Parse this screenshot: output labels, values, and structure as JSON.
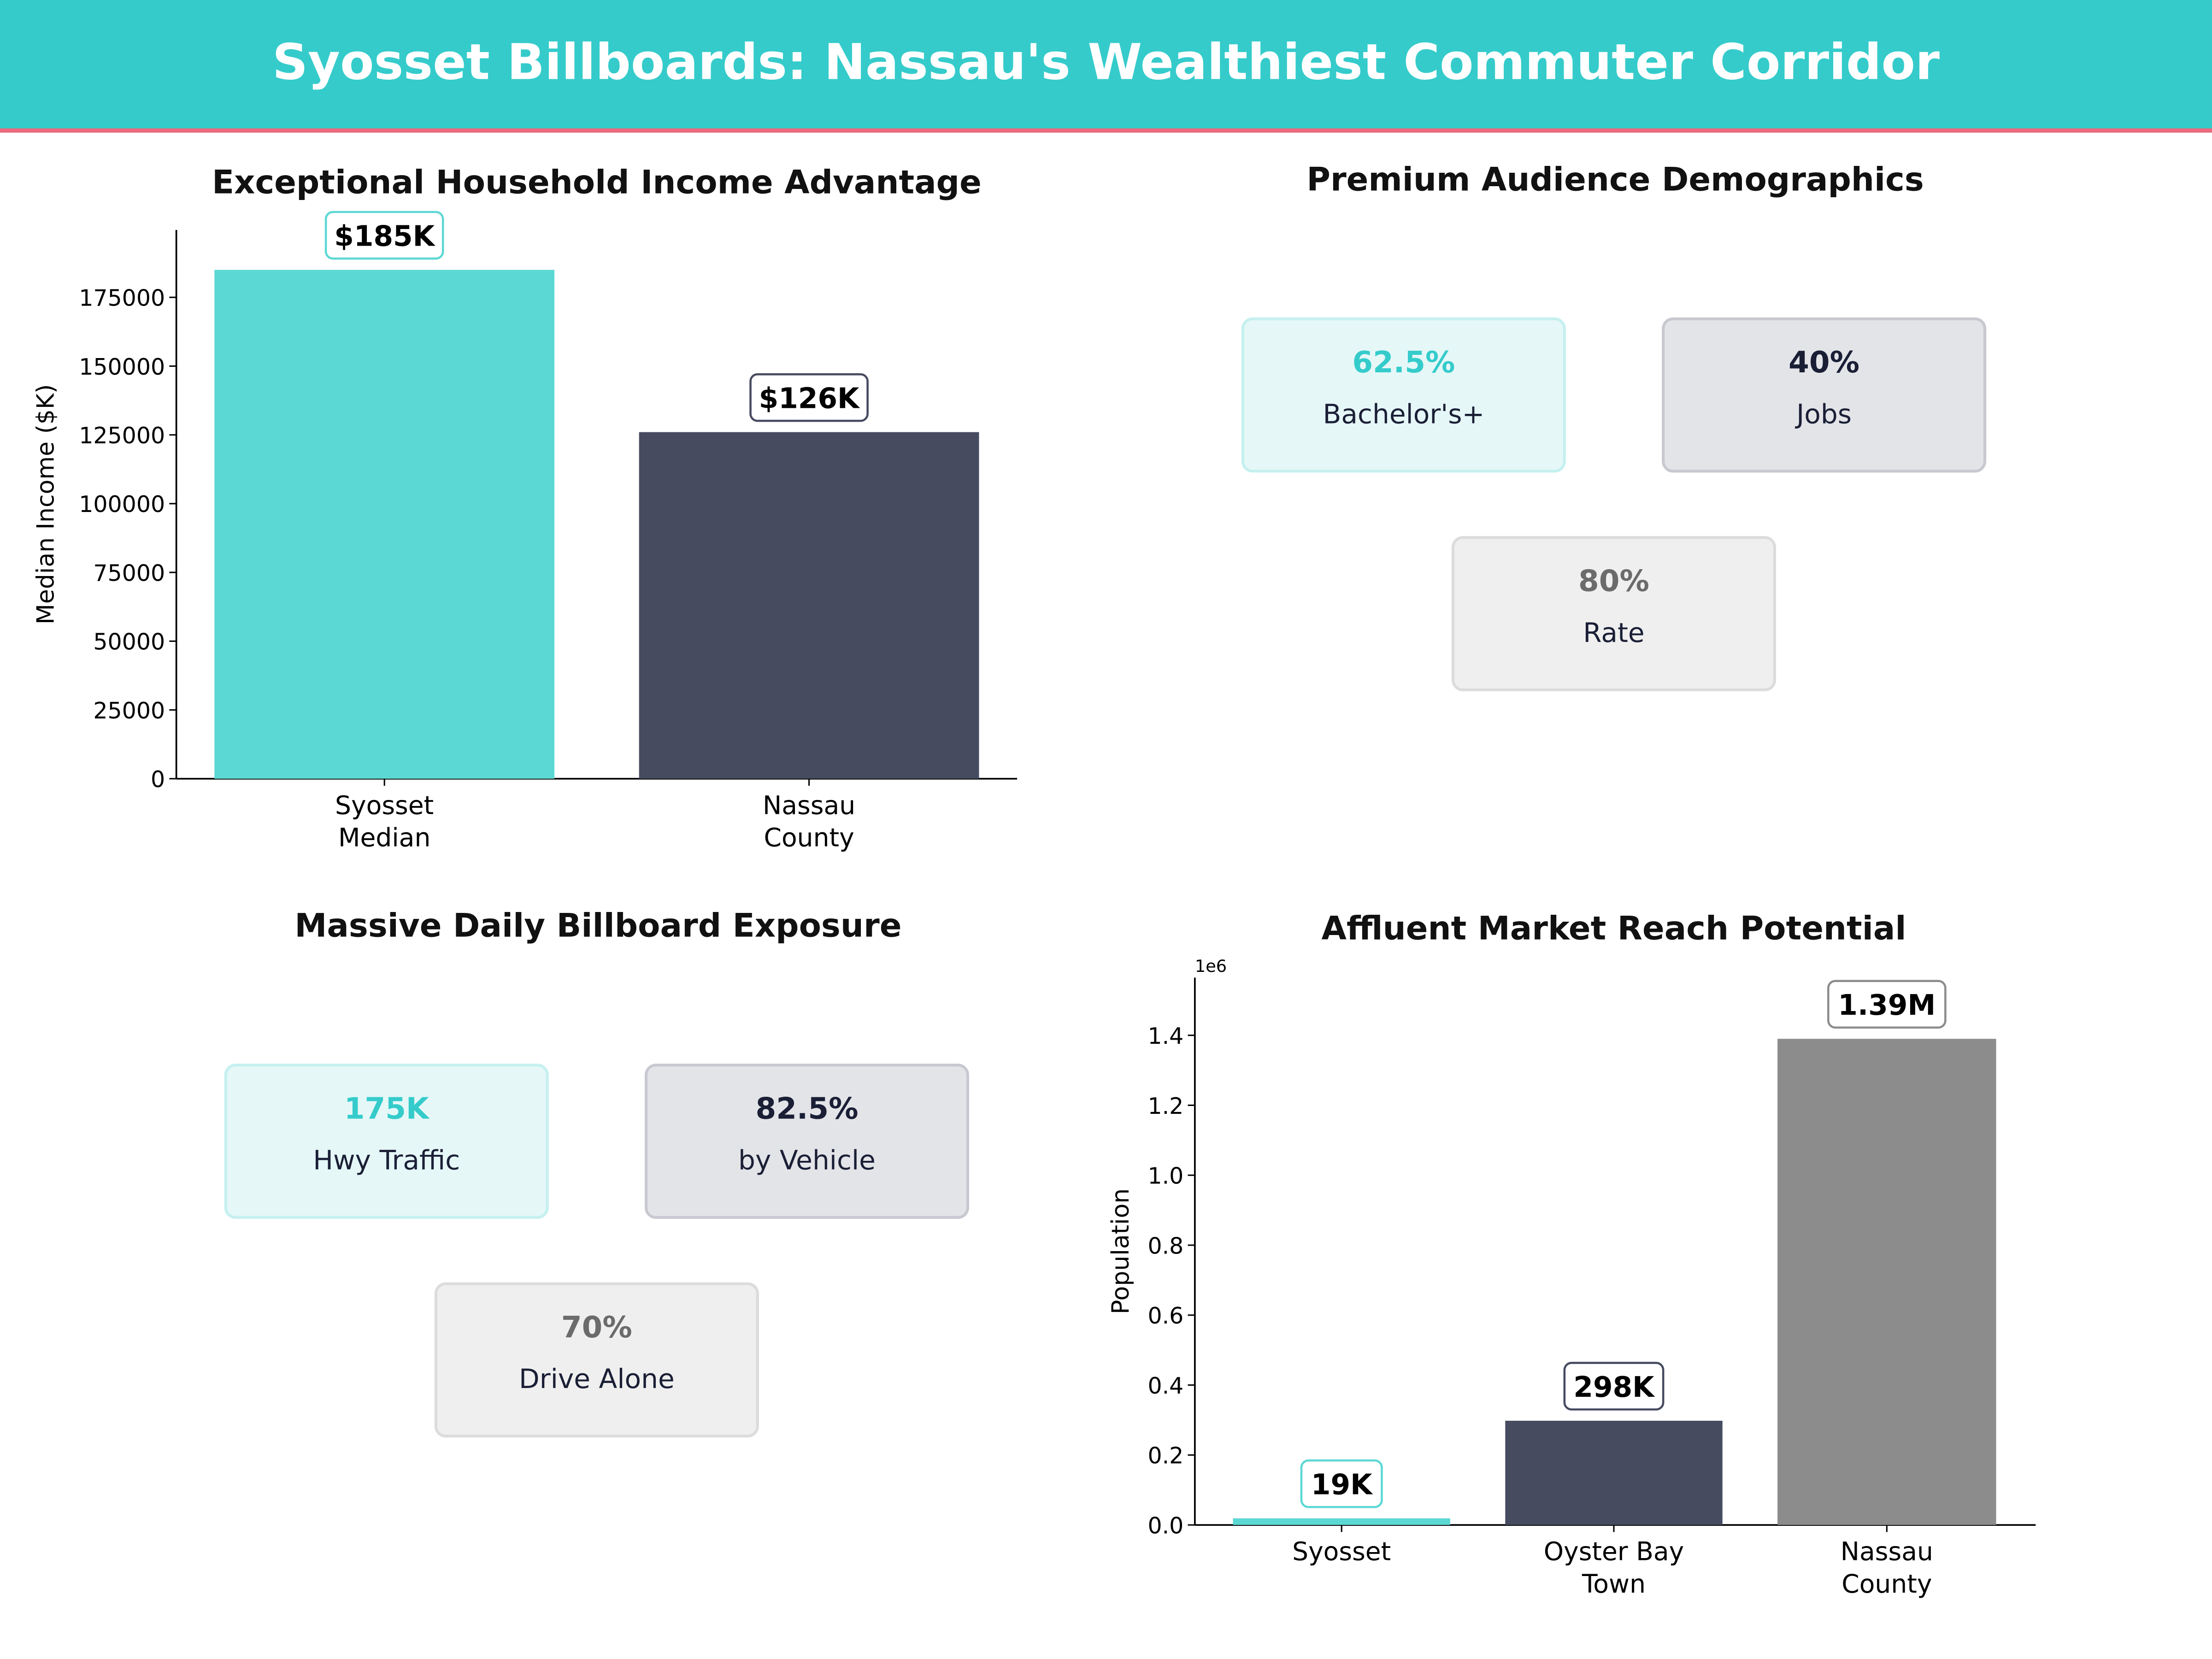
{
  "header": {
    "title": "Syosset Billboards: Nassau's Wealthiest Commuter Corridor"
  },
  "colors": {
    "teal": "#35cbcb",
    "coral": "#ec6a7c",
    "navy": "#464b60",
    "gray": "#8c8c8c"
  },
  "demographics": {
    "title": "Premium Audience Demographics",
    "cards": [
      {
        "value": "62.5%",
        "label": "Bachelor's+",
        "color": "#35cbcb",
        "bg": "#e5f7f7",
        "border": "#c6f0f0"
      },
      {
        "value": "40%",
        "label": "Jobs",
        "color": "#1a1f36",
        "bg": "#e3e4e8",
        "border": "#c8c9d0"
      },
      {
        "value": "80%",
        "label": "Rate",
        "color": "#6b6b6b",
        "bg": "#efefef",
        "border": "#dcdcdc"
      }
    ]
  },
  "exposure": {
    "title": "Massive Daily Billboard Exposure",
    "cards": [
      {
        "value": "175K",
        "label": "Hwy Traffic",
        "color": "#35cbcb",
        "bg": "#e5f7f7",
        "border": "#c6f0f0"
      },
      {
        "value": "82.5%",
        "label": "by Vehicle",
        "color": "#1a1f36",
        "bg": "#e3e4e8",
        "border": "#c8c9d0"
      },
      {
        "value": "70%",
        "label": "Drive Alone",
        "color": "#6b6b6b",
        "bg": "#efefef",
        "border": "#dcdcdc"
      }
    ]
  },
  "chart_data": [
    {
      "type": "bar",
      "title": "Exceptional Household Income Advantage",
      "xlabel": "",
      "ylabel": "Median Income ($K)",
      "categories": [
        "Syosset\nMedian",
        "Nassau\nCounty"
      ],
      "values": [
        185000,
        126000
      ],
      "data_labels": [
        "$185K",
        "$126K"
      ],
      "colors": [
        "#5cd8d4",
        "#464b60"
      ],
      "ylim": [
        0,
        199500
      ],
      "yticks": [
        0,
        25000,
        50000,
        75000,
        100000,
        125000,
        150000,
        175000
      ],
      "grid": false
    },
    {
      "type": "bar",
      "title": "Affluent Market Reach Potential",
      "xlabel": "",
      "ylabel": "Population",
      "offset_label": "1e6",
      "categories": [
        "Syosset",
        "Oyster Bay\nTown",
        "Nassau\nCounty"
      ],
      "values": [
        19000,
        298000,
        1390000
      ],
      "data_labels": [
        "19K",
        "298K",
        "1.39M"
      ],
      "colors": [
        "#5cd8d4",
        "#464b60",
        "#8c8c8c"
      ],
      "ylim": [
        0,
        1565000
      ],
      "yticks": [
        "0.0",
        "0.2",
        "0.4",
        "0.6",
        "0.8",
        "1.0",
        "1.2",
        "1.4"
      ],
      "grid": false
    }
  ]
}
